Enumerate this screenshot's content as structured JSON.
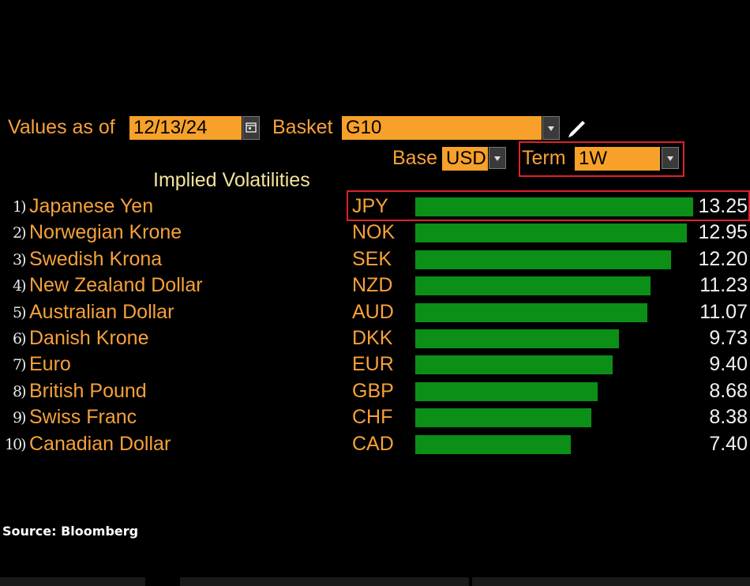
{
  "controls": {
    "values_as_of_label": "Values as of",
    "date_value": "12/13/24",
    "basket_label": "Basket",
    "basket_value": "G10",
    "base_label": "Base",
    "base_value": "USD",
    "term_label": "Term",
    "term_value": "1W"
  },
  "icons": {
    "calendar": "calendar-icon",
    "dropdown": "chevron-down-icon",
    "edit": "pencil-icon"
  },
  "colors": {
    "accent": "#f7a13a",
    "bar": "#0b8f17",
    "highlight": "#e0202a"
  },
  "chart_data": {
    "type": "bar",
    "title": "Implied Volatilities",
    "orientation": "horizontal",
    "ranks": [
      "1)",
      "2)",
      "3)",
      "4)",
      "5)",
      "6)",
      "7)",
      "8)",
      "9)",
      "10)"
    ],
    "names": [
      "Japanese Yen",
      "Norwegian Krone",
      "Swedish Krona",
      "New Zealand Dollar",
      "Australian Dollar",
      "Danish Krone",
      "Euro",
      "British Pound",
      "Swiss Franc",
      "Canadian Dollar"
    ],
    "categories": [
      "JPY",
      "NOK",
      "SEK",
      "NZD",
      "AUD",
      "DKK",
      "EUR",
      "GBP",
      "CHF",
      "CAD"
    ],
    "values": [
      13.25,
      12.95,
      12.2,
      11.23,
      11.07,
      9.73,
      9.4,
      8.68,
      8.38,
      7.4
    ],
    "labels": [
      "13.25",
      "12.95",
      "12.20",
      "11.23",
      "11.07",
      "9.73",
      "9.40",
      "8.68",
      "8.38",
      "7.40"
    ],
    "xlim": [
      0,
      13.25
    ]
  },
  "footer": {
    "source": "Source: Bloomberg"
  }
}
